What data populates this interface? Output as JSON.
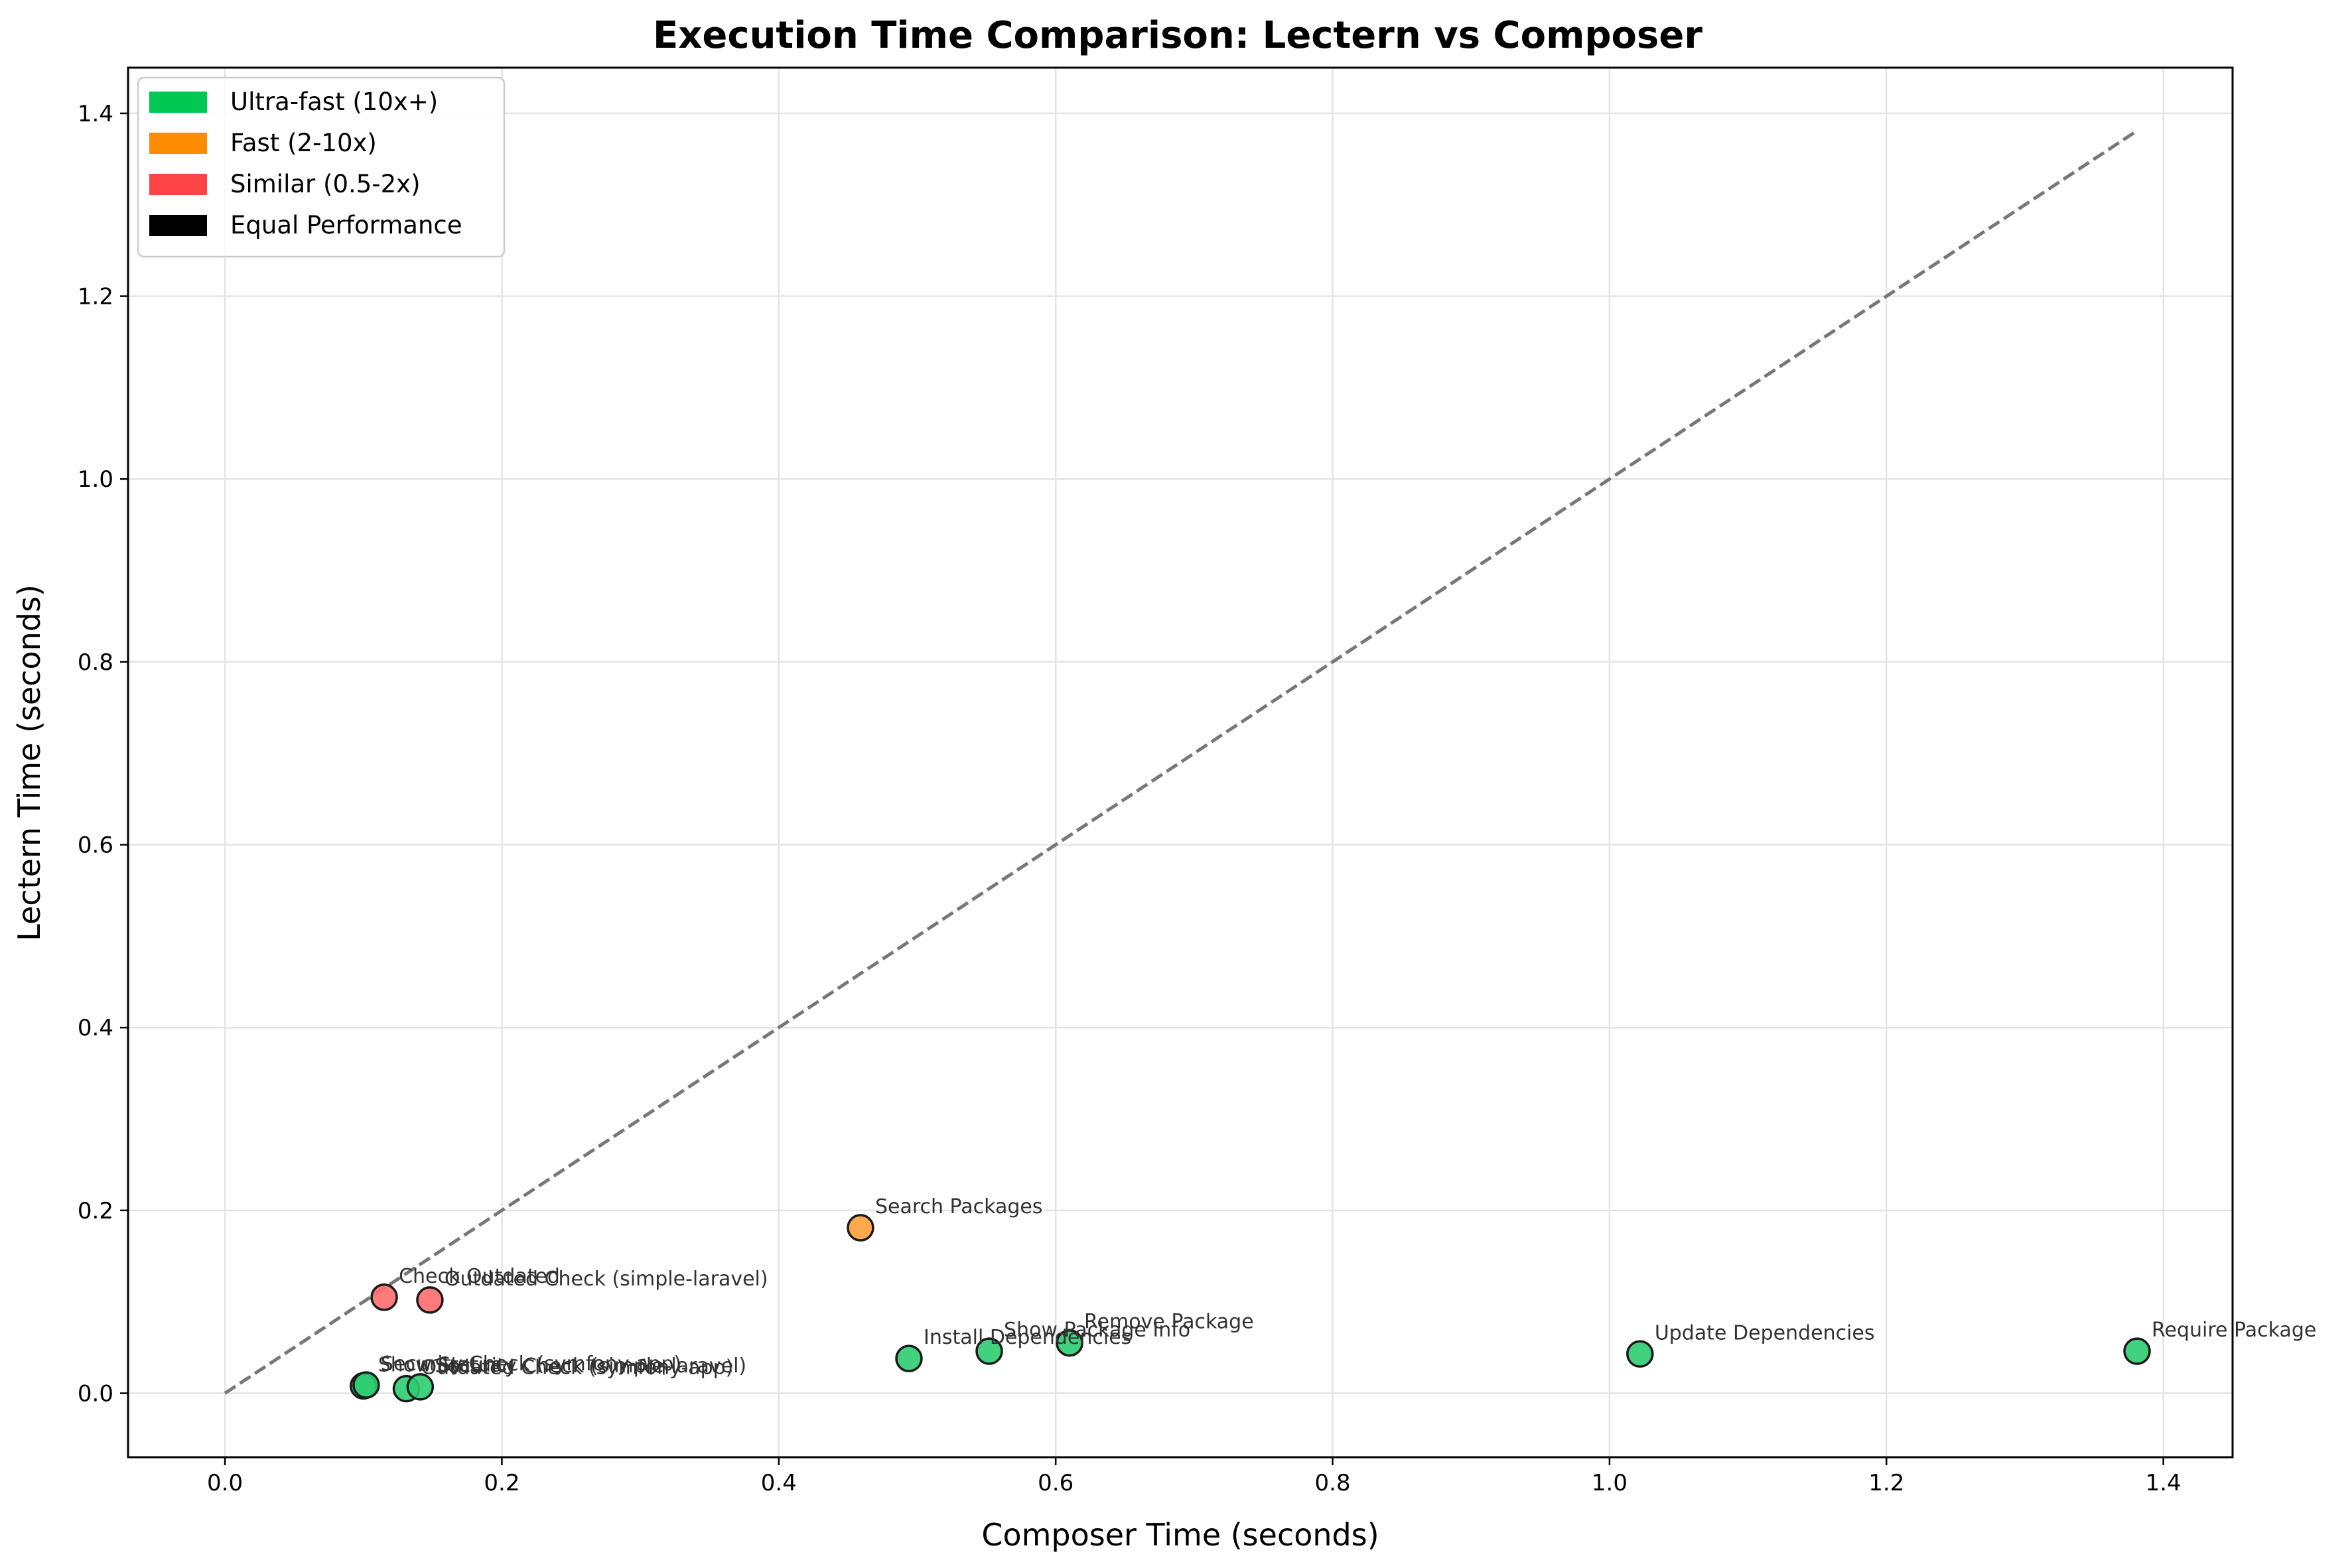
{
  "chart_data": {
    "type": "scatter",
    "title": "Execution Time Comparison: Lectern vs Composer",
    "xlabel": "Composer Time (seconds)",
    "ylabel": "Lectern Time (seconds)",
    "xlim": [
      -0.07,
      1.45
    ],
    "ylim": [
      -0.07,
      1.45
    ],
    "x_ticks": [
      "0.0",
      "0.2",
      "0.4",
      "0.6",
      "0.8",
      "1.0",
      "1.2",
      "1.4"
    ],
    "y_ticks": [
      "0.0",
      "0.2",
      "0.4",
      "0.6",
      "0.8",
      "1.0",
      "1.2",
      "1.4"
    ],
    "grid": true,
    "legend_position": "top-left",
    "legend": [
      {
        "label": "Ultra-fast (10x+)",
        "color": "#00c853"
      },
      {
        "label": "Fast (2-10x)",
        "color": "#ff8c00"
      },
      {
        "label": "Similar (0.5-2x)",
        "color": "#ff4444"
      },
      {
        "label": "Equal Performance",
        "color": "#000000"
      }
    ],
    "reference_line": {
      "x": [
        0,
        1.38
      ],
      "y": [
        0,
        1.38
      ],
      "style": "dashed",
      "color": "#777777"
    },
    "points": [
      {
        "label": "Show Status",
        "x": 0.1,
        "y": 0.008,
        "category": "Ultra-fast (10x+)",
        "color": "#2ecc71"
      },
      {
        "label": "Security Check (symfony-app)",
        "x": 0.102,
        "y": 0.009,
        "category": "Ultra-fast (10x+)",
        "color": "#2ecc71"
      },
      {
        "label": "Outdated Check (symfony-app)",
        "x": 0.131,
        "y": 0.005,
        "category": "Ultra-fast (10x+)",
        "color": "#2ecc71"
      },
      {
        "label": "Security Check (simple-laravel)",
        "x": 0.141,
        "y": 0.007,
        "category": "Ultra-fast (10x+)",
        "color": "#2ecc71"
      },
      {
        "label": "Check Outdated",
        "x": 0.115,
        "y": 0.105,
        "category": "Similar (0.5-2x)",
        "color": "#ff6b6b"
      },
      {
        "label": "Outdated Check (simple-laravel)",
        "x": 0.148,
        "y": 0.102,
        "category": "Similar (0.5-2x)",
        "color": "#ff6b6b"
      },
      {
        "label": "Search Packages",
        "x": 0.459,
        "y": 0.181,
        "category": "Fast (2-10x)",
        "color": "#ffa03a"
      },
      {
        "label": "Install Dependencies",
        "x": 0.494,
        "y": 0.038,
        "category": "Ultra-fast (10x+)",
        "color": "#2ecc71"
      },
      {
        "label": "Show Package Info",
        "x": 0.552,
        "y": 0.046,
        "category": "Ultra-fast (10x+)",
        "color": "#2ecc71"
      },
      {
        "label": "Remove Package",
        "x": 0.61,
        "y": 0.055,
        "category": "Ultra-fast (10x+)",
        "color": "#2ecc71"
      },
      {
        "label": "Update Dependencies",
        "x": 1.022,
        "y": 0.043,
        "category": "Ultra-fast (10x+)",
        "color": "#2ecc71"
      },
      {
        "label": "Require Package",
        "x": 1.381,
        "y": 0.046,
        "category": "Ultra-fast (10x+)",
        "color": "#2ecc71"
      }
    ]
  }
}
